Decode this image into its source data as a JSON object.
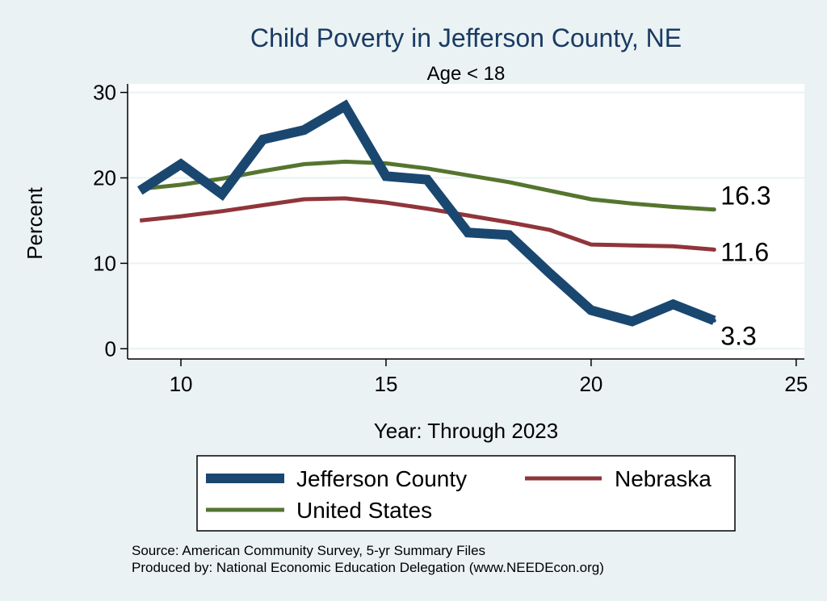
{
  "chart_data": {
    "type": "line",
    "title": "Child Poverty in Jefferson County, NE",
    "subtitle": "Age < 18",
    "xlabel": "Year: Through 2023",
    "ylabel": "Percent",
    "xlim": [
      8.7,
      25.2
    ],
    "ylim": [
      -1.2,
      31
    ],
    "xticks": [
      10,
      15,
      20,
      25
    ],
    "yticks": [
      0,
      10,
      20,
      30
    ],
    "grid": true,
    "x": [
      9,
      10,
      11,
      12,
      13,
      14,
      15,
      16,
      17,
      18,
      19,
      20,
      21,
      22,
      23
    ],
    "series": [
      {
        "name": "Jefferson County",
        "color": "#1a476f",
        "width": 12,
        "values": [
          18.5,
          21.6,
          18.1,
          24.5,
          25.6,
          28.4,
          20.2,
          19.8,
          13.6,
          13.3,
          8.8,
          4.5,
          3.2,
          5.2,
          3.3
        ],
        "end_label": "3.3"
      },
      {
        "name": "Nebraska",
        "color": "#90353b",
        "width": 5,
        "values": [
          15.0,
          15.5,
          16.1,
          16.8,
          17.5,
          17.6,
          17.1,
          16.4,
          15.6,
          14.8,
          13.9,
          12.2,
          12.1,
          12.0,
          11.6
        ],
        "end_label": "11.6"
      },
      {
        "name": "United States",
        "color": "#55752f",
        "width": 5,
        "values": [
          18.7,
          19.2,
          19.9,
          20.8,
          21.6,
          21.9,
          21.7,
          21.1,
          20.3,
          19.5,
          18.5,
          17.5,
          17.0,
          16.6,
          16.3
        ],
        "end_label": "16.3"
      }
    ]
  },
  "source_lines": [
    "Source: American Community Survey, 5-yr Summary Files",
    "Produced by: National Economic Education Delegation (www.NEEDEcon.org)"
  ],
  "colors": {
    "background": "#eaf2f3",
    "plot_background": "#ffffff",
    "gridline": "#eaf2f3",
    "title": "#1a3a63"
  }
}
